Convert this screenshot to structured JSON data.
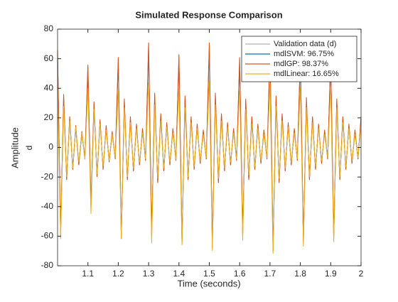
{
  "chart_data": {
    "type": "line",
    "title": "Simulated Response Comparison",
    "xlabel": "Time (seconds)",
    "ylabel": "Amplitude",
    "ylabel2": "d",
    "xlim": [
      1,
      2
    ],
    "xticks": [
      1.1,
      1.2,
      1.3,
      1.4,
      1.5,
      1.6,
      1.7,
      1.8,
      1.9,
      2
    ],
    "ylim": [
      -80,
      80
    ],
    "yticks": [
      -80,
      -60,
      -40,
      -20,
      0,
      20,
      40,
      60,
      80
    ],
    "legend": "top-right",
    "x": [
      1.0,
      1.01,
      1.02,
      1.03,
      1.04,
      1.05,
      1.06,
      1.07,
      1.08,
      1.09,
      1.1,
      1.11,
      1.12,
      1.13,
      1.14,
      1.15,
      1.16,
      1.17,
      1.18,
      1.19,
      1.2,
      1.21,
      1.22,
      1.23,
      1.24,
      1.25,
      1.26,
      1.27,
      1.28,
      1.29,
      1.3,
      1.31,
      1.32,
      1.33,
      1.34,
      1.35,
      1.36,
      1.37,
      1.38,
      1.39,
      1.4,
      1.41,
      1.42,
      1.43,
      1.44,
      1.45,
      1.46,
      1.47,
      1.48,
      1.49,
      1.5,
      1.51,
      1.52,
      1.53,
      1.54,
      1.55,
      1.56,
      1.57,
      1.58,
      1.59,
      1.6,
      1.61,
      1.62,
      1.63,
      1.64,
      1.65,
      1.66,
      1.67,
      1.68,
      1.69,
      1.7,
      1.71,
      1.72,
      1.73,
      1.74,
      1.75,
      1.76,
      1.77,
      1.78,
      1.79,
      1.8,
      1.81,
      1.82,
      1.83,
      1.84,
      1.85,
      1.86,
      1.87,
      1.88,
      1.89,
      1.9,
      1.91,
      1.92,
      1.93,
      1.94,
      1.95,
      1.96,
      1.97,
      1.98,
      1.99,
      2.0
    ],
    "series": [
      {
        "name": "Validation data (d)",
        "color": "#b0b0b0",
        "values": [
          65,
          -60,
          35,
          -22,
          20,
          -15,
          14,
          -12,
          10,
          -8,
          55,
          -40,
          30,
          -20,
          18,
          -15,
          14,
          -10,
          10,
          -8,
          60,
          -62,
          32,
          -22,
          20,
          -16,
          15,
          -12,
          12,
          -9,
          70,
          -60,
          36,
          -24,
          22,
          -16,
          16,
          -12,
          12,
          -9,
          62,
          -65,
          34,
          -22,
          20,
          -15,
          15,
          -11,
          11,
          -8,
          70,
          -68,
          36,
          -24,
          22,
          -16,
          16,
          -12,
          12,
          -9,
          60,
          -60,
          32,
          -22,
          20,
          -15,
          15,
          -11,
          11,
          -8,
          65,
          -70,
          34,
          -24,
          22,
          -16,
          16,
          -12,
          12,
          -9,
          62,
          -65,
          33,
          -22,
          20,
          -15,
          15,
          -11,
          11,
          -8,
          60,
          -62,
          32,
          -22,
          20,
          -15,
          15,
          -11,
          11,
          -8,
          20
        ]
      },
      {
        "name": "mdlSVM: 96.75%",
        "color": "#0072bd",
        "values": [
          62,
          -58,
          33,
          -21,
          19,
          -14,
          13,
          -11,
          9,
          -7,
          52,
          -38,
          28,
          -19,
          17,
          -14,
          13,
          -9,
          9,
          -7,
          57,
          -60,
          30,
          -21,
          19,
          -15,
          14,
          -11,
          11,
          -8,
          66,
          -58,
          34,
          -23,
          21,
          -15,
          15,
          -11,
          11,
          -8,
          59,
          -63,
          32,
          -21,
          19,
          -14,
          14,
          -10,
          10,
          -7,
          66,
          -66,
          34,
          -23,
          21,
          -15,
          15,
          -11,
          11,
          -8,
          57,
          -58,
          30,
          -21,
          19,
          -14,
          14,
          -10,
          10,
          -7,
          62,
          -68,
          32,
          -23,
          21,
          -15,
          15,
          -11,
          11,
          -8,
          59,
          -63,
          31,
          -21,
          19,
          -14,
          14,
          -10,
          10,
          -7,
          57,
          -60,
          30,
          -21,
          19,
          -14,
          14,
          -10,
          10,
          -7,
          19
        ]
      },
      {
        "name": "mdlGP: 98.37%",
        "color": "#d95319",
        "values": [
          66,
          -60,
          36,
          -22,
          21,
          -15,
          15,
          -12,
          11,
          -8,
          56,
          -41,
          31,
          -20,
          19,
          -15,
          15,
          -10,
          11,
          -8,
          61,
          -62,
          33,
          -22,
          21,
          -16,
          16,
          -12,
          13,
          -9,
          71,
          -61,
          37,
          -24,
          23,
          -16,
          17,
          -12,
          13,
          -9,
          63,
          -65,
          35,
          -22,
          21,
          -15,
          16,
          -11,
          12,
          -8,
          71,
          -68,
          37,
          -24,
          23,
          -16,
          17,
          -12,
          13,
          -9,
          61,
          -60,
          33,
          -22,
          21,
          -15,
          16,
          -11,
          12,
          -8,
          66,
          -70,
          35,
          -24,
          23,
          -16,
          17,
          -12,
          13,
          -9,
          63,
          -65,
          34,
          -22,
          21,
          -15,
          16,
          -11,
          12,
          -8,
          61,
          -62,
          33,
          -22,
          21,
          -15,
          16,
          -11,
          12,
          -8,
          21
        ]
      },
      {
        "name": "mdlLinear: 16.65%",
        "color": "#edb120",
        "values": [
          42,
          -62,
          28,
          -20,
          18,
          -14,
          14,
          -10,
          10,
          -8,
          40,
          -45,
          26,
          -18,
          16,
          -13,
          12,
          -9,
          9,
          -7,
          38,
          -62,
          27,
          -20,
          17,
          -14,
          13,
          -10,
          10,
          -8,
          44,
          -65,
          29,
          -21,
          18,
          -14,
          14,
          -10,
          10,
          -8,
          40,
          -66,
          27,
          -20,
          17,
          -13,
          13,
          -9,
          9,
          -7,
          45,
          -70,
          29,
          -21,
          18,
          -14,
          14,
          -10,
          10,
          -8,
          39,
          -63,
          26,
          -19,
          16,
          -13,
          13,
          -9,
          9,
          -7,
          43,
          -72,
          28,
          -21,
          18,
          -14,
          14,
          -10,
          10,
          -8,
          41,
          -67,
          27,
          -20,
          17,
          -13,
          13,
          -9,
          9,
          -7,
          40,
          -64,
          27,
          -20,
          17,
          -13,
          13,
          -9,
          9,
          -7,
          16
        ]
      }
    ]
  }
}
